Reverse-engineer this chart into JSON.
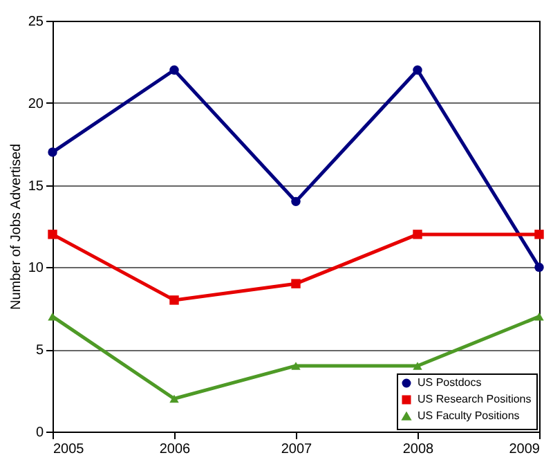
{
  "chart_data": {
    "type": "line",
    "ylabel": "Number of Jobs Advertised",
    "x": [
      2005,
      2006,
      2007,
      2008,
      2009
    ],
    "xlim": [
      2005,
      2009
    ],
    "xticks": [
      2005,
      2006,
      2007,
      2008,
      2009
    ],
    "ylim": [
      0,
      25
    ],
    "yticks": [
      0,
      5,
      10,
      15,
      20,
      25
    ],
    "grid": "y",
    "legend": "bottom right",
    "series": [
      {
        "name": "US Postdocs",
        "color": "#000080",
        "marker": "circle",
        "values": [
          17,
          22,
          14,
          22,
          10
        ]
      },
      {
        "name": "US Research Positions",
        "color": "#e60000",
        "marker": "square",
        "values": [
          12,
          8,
          9,
          12,
          12
        ]
      },
      {
        "name": "US Faculty Positions",
        "color": "#4e9a26",
        "marker": "triangle",
        "values": [
          7,
          2,
          4,
          4,
          7
        ]
      }
    ]
  }
}
